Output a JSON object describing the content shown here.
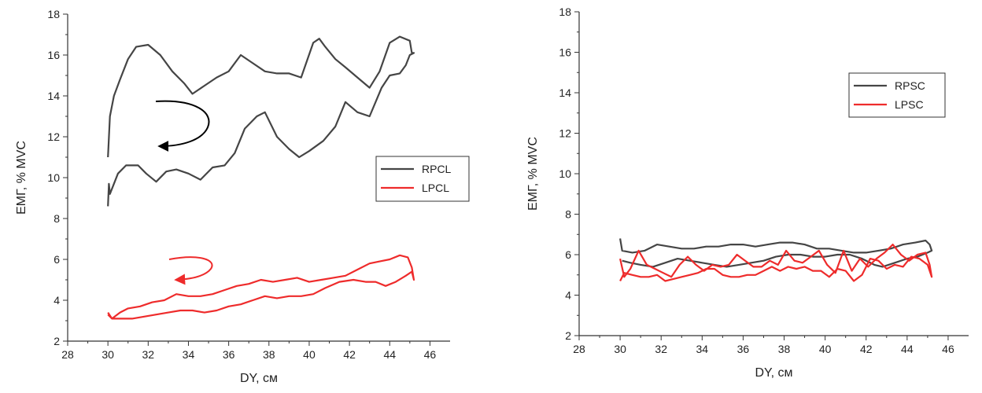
{
  "chart_data": [
    {
      "type": "line",
      "xlabel": "DY, см",
      "ylabel": "ЕМГ, % MVC",
      "xlim": [
        28,
        47
      ],
      "ylim": [
        2,
        18
      ],
      "xticks": [
        28,
        30,
        32,
        34,
        36,
        38,
        40,
        42,
        44,
        46
      ],
      "yticks": [
        2,
        4,
        6,
        8,
        10,
        12,
        14,
        16,
        18
      ],
      "legend_position": "center-right",
      "series": [
        {
          "name": "RPCL",
          "color": "#454545",
          "points": [
            [
              30.0,
              11.0
            ],
            [
              30.1,
              13.0
            ],
            [
              30.3,
              14.0
            ],
            [
              30.6,
              14.8
            ],
            [
              31.0,
              15.8
            ],
            [
              31.4,
              16.4
            ],
            [
              32.0,
              16.5
            ],
            [
              32.6,
              16.0
            ],
            [
              33.2,
              15.2
            ],
            [
              33.8,
              14.6
            ],
            [
              34.2,
              14.1
            ],
            [
              34.8,
              14.5
            ],
            [
              35.4,
              14.9
            ],
            [
              36.0,
              15.2
            ],
            [
              36.6,
              16.0
            ],
            [
              37.2,
              15.6
            ],
            [
              37.8,
              15.2
            ],
            [
              38.4,
              15.1
            ],
            [
              39.0,
              15.1
            ],
            [
              39.6,
              14.9
            ],
            [
              40.2,
              16.6
            ],
            [
              40.5,
              16.8
            ],
            [
              40.8,
              16.4
            ],
            [
              41.3,
              15.8
            ],
            [
              41.8,
              15.4
            ],
            [
              42.4,
              14.9
            ],
            [
              43.0,
              14.4
            ],
            [
              43.5,
              15.2
            ],
            [
              44.0,
              16.6
            ],
            [
              44.5,
              16.9
            ],
            [
              45.0,
              16.7
            ],
            [
              45.1,
              16.1
            ],
            [
              45.2,
              16.1
            ],
            [
              45.0,
              16.0
            ],
            [
              44.8,
              15.5
            ],
            [
              44.5,
              15.1
            ],
            [
              44.0,
              15.0
            ],
            [
              43.6,
              14.4
            ],
            [
              43.0,
              13.0
            ],
            [
              42.4,
              13.2
            ],
            [
              41.8,
              13.7
            ],
            [
              41.3,
              12.5
            ],
            [
              40.7,
              11.8
            ],
            [
              40.0,
              11.3
            ],
            [
              39.5,
              11.0
            ],
            [
              39.0,
              11.4
            ],
            [
              38.4,
              12.0
            ],
            [
              37.8,
              13.2
            ],
            [
              37.4,
              13.0
            ],
            [
              36.8,
              12.4
            ],
            [
              36.3,
              11.2
            ],
            [
              35.8,
              10.6
            ],
            [
              35.2,
              10.5
            ],
            [
              34.6,
              9.9
            ],
            [
              34.0,
              10.2
            ],
            [
              33.4,
              10.4
            ],
            [
              32.9,
              10.3
            ],
            [
              32.4,
              9.8
            ],
            [
              31.9,
              10.2
            ],
            [
              31.5,
              10.6
            ],
            [
              30.9,
              10.6
            ],
            [
              30.5,
              10.2
            ],
            [
              30.1,
              9.2
            ],
            [
              30.05,
              9.7
            ],
            [
              30.0,
              8.6
            ]
          ]
        },
        {
          "name": "LPCL",
          "color": "#ee2b2b",
          "points": [
            [
              30.0,
              3.3
            ],
            [
              30.2,
              3.1
            ],
            [
              30.6,
              3.4
            ],
            [
              31.0,
              3.6
            ],
            [
              31.6,
              3.7
            ],
            [
              32.2,
              3.9
            ],
            [
              32.8,
              4.0
            ],
            [
              33.4,
              4.3
            ],
            [
              34.0,
              4.2
            ],
            [
              34.6,
              4.2
            ],
            [
              35.2,
              4.3
            ],
            [
              35.8,
              4.5
            ],
            [
              36.4,
              4.7
            ],
            [
              37.0,
              4.8
            ],
            [
              37.6,
              5.0
            ],
            [
              38.2,
              4.9
            ],
            [
              38.8,
              5.0
            ],
            [
              39.4,
              5.1
            ],
            [
              40.0,
              4.9
            ],
            [
              40.6,
              5.0
            ],
            [
              41.2,
              5.1
            ],
            [
              41.8,
              5.2
            ],
            [
              42.4,
              5.5
            ],
            [
              43.0,
              5.8
            ],
            [
              43.5,
              5.9
            ],
            [
              44.0,
              6.0
            ],
            [
              44.5,
              6.2
            ],
            [
              44.9,
              6.1
            ],
            [
              45.1,
              5.6
            ],
            [
              45.2,
              5.0
            ],
            [
              45.1,
              5.4
            ],
            [
              44.8,
              5.2
            ],
            [
              44.3,
              4.9
            ],
            [
              43.8,
              4.7
            ],
            [
              43.3,
              4.9
            ],
            [
              42.8,
              4.9
            ],
            [
              42.2,
              5.0
            ],
            [
              41.5,
              4.9
            ],
            [
              40.8,
              4.6
            ],
            [
              40.2,
              4.3
            ],
            [
              39.6,
              4.2
            ],
            [
              39.0,
              4.2
            ],
            [
              38.4,
              4.1
            ],
            [
              37.8,
              4.2
            ],
            [
              37.2,
              4.0
            ],
            [
              36.6,
              3.8
            ],
            [
              36.0,
              3.7
            ],
            [
              35.4,
              3.5
            ],
            [
              34.8,
              3.4
            ],
            [
              34.2,
              3.5
            ],
            [
              33.6,
              3.5
            ],
            [
              33.0,
              3.4
            ],
            [
              32.4,
              3.3
            ],
            [
              31.8,
              3.2
            ],
            [
              31.2,
              3.1
            ],
            [
              30.6,
              3.1
            ],
            [
              30.2,
              3.1
            ],
            [
              30.0,
              3.4
            ]
          ]
        }
      ]
    },
    {
      "type": "line",
      "xlabel": "DY, см",
      "ylabel": "ЕМГ, % MVC",
      "xlim": [
        28,
        47
      ],
      "ylim": [
        2,
        18
      ],
      "xticks": [
        28,
        30,
        32,
        34,
        36,
        38,
        40,
        42,
        44,
        46
      ],
      "yticks": [
        2,
        4,
        6,
        8,
        10,
        12,
        14,
        16,
        18
      ],
      "legend_position": "top-right",
      "series": [
        {
          "name": "RPSC",
          "color": "#454545",
          "points": [
            [
              30.0,
              6.8
            ],
            [
              30.1,
              6.2
            ],
            [
              30.6,
              6.1
            ],
            [
              31.2,
              6.2
            ],
            [
              31.8,
              6.5
            ],
            [
              32.4,
              6.4
            ],
            [
              33.0,
              6.3
            ],
            [
              33.6,
              6.3
            ],
            [
              34.2,
              6.4
            ],
            [
              34.8,
              6.4
            ],
            [
              35.4,
              6.5
            ],
            [
              36.0,
              6.5
            ],
            [
              36.6,
              6.4
            ],
            [
              37.2,
              6.5
            ],
            [
              37.8,
              6.6
            ],
            [
              38.4,
              6.6
            ],
            [
              39.0,
              6.5
            ],
            [
              39.6,
              6.3
            ],
            [
              40.2,
              6.3
            ],
            [
              40.8,
              6.2
            ],
            [
              41.4,
              6.1
            ],
            [
              42.0,
              6.1
            ],
            [
              42.6,
              6.2
            ],
            [
              43.2,
              6.3
            ],
            [
              43.8,
              6.5
            ],
            [
              44.4,
              6.6
            ],
            [
              44.9,
              6.7
            ],
            [
              45.1,
              6.5
            ],
            [
              45.2,
              6.2
            ],
            [
              45.0,
              6.1
            ],
            [
              44.5,
              5.9
            ],
            [
              44.0,
              5.8
            ],
            [
              43.4,
              5.6
            ],
            [
              42.8,
              5.4
            ],
            [
              42.4,
              5.5
            ],
            [
              41.8,
              5.8
            ],
            [
              41.2,
              6.0
            ],
            [
              40.6,
              6.0
            ],
            [
              40.0,
              5.9
            ],
            [
              39.4,
              5.9
            ],
            [
              38.8,
              6.0
            ],
            [
              38.2,
              6.0
            ],
            [
              37.6,
              5.9
            ],
            [
              37.0,
              5.7
            ],
            [
              36.4,
              5.6
            ],
            [
              35.8,
              5.5
            ],
            [
              35.2,
              5.4
            ],
            [
              34.6,
              5.5
            ],
            [
              34.0,
              5.6
            ],
            [
              33.4,
              5.7
            ],
            [
              32.8,
              5.8
            ],
            [
              32.2,
              5.6
            ],
            [
              31.6,
              5.4
            ],
            [
              31.0,
              5.5
            ],
            [
              30.5,
              5.6
            ],
            [
              30.1,
              5.7
            ]
          ]
        },
        {
          "name": "LPSC",
          "color": "#ee2b2b",
          "points": [
            [
              30.0,
              5.8
            ],
            [
              30.2,
              4.9
            ],
            [
              30.5,
              5.3
            ],
            [
              30.9,
              6.2
            ],
            [
              31.3,
              5.5
            ],
            [
              31.7,
              5.3
            ],
            [
              32.1,
              5.1
            ],
            [
              32.5,
              4.9
            ],
            [
              32.9,
              5.5
            ],
            [
              33.3,
              5.9
            ],
            [
              33.7,
              5.5
            ],
            [
              34.1,
              5.2
            ],
            [
              34.5,
              5.5
            ],
            [
              34.9,
              5.4
            ],
            [
              35.3,
              5.5
            ],
            [
              35.7,
              6.0
            ],
            [
              36.1,
              5.7
            ],
            [
              36.5,
              5.4
            ],
            [
              36.9,
              5.4
            ],
            [
              37.3,
              5.7
            ],
            [
              37.7,
              5.5
            ],
            [
              38.1,
              6.2
            ],
            [
              38.5,
              5.7
            ],
            [
              38.9,
              5.6
            ],
            [
              39.3,
              5.9
            ],
            [
              39.7,
              6.2
            ],
            [
              40.1,
              5.5
            ],
            [
              40.5,
              5.1
            ],
            [
              40.9,
              6.2
            ],
            [
              41.3,
              5.2
            ],
            [
              41.7,
              5.8
            ],
            [
              42.1,
              5.4
            ],
            [
              42.5,
              5.8
            ],
            [
              42.9,
              6.1
            ],
            [
              43.3,
              6.5
            ],
            [
              43.7,
              6.0
            ],
            [
              44.1,
              5.7
            ],
            [
              44.5,
              6.0
            ],
            [
              44.9,
              6.1
            ],
            [
              45.1,
              5.5
            ],
            [
              45.2,
              4.9
            ],
            [
              45.0,
              5.5
            ],
            [
              44.6,
              5.8
            ],
            [
              44.2,
              5.9
            ],
            [
              43.8,
              5.4
            ],
            [
              43.4,
              5.5
            ],
            [
              43.0,
              5.3
            ],
            [
              42.6,
              5.7
            ],
            [
              42.2,
              5.8
            ],
            [
              41.8,
              5.0
            ],
            [
              41.4,
              4.7
            ],
            [
              41.0,
              5.2
            ],
            [
              40.6,
              5.3
            ],
            [
              40.2,
              4.9
            ],
            [
              39.8,
              5.2
            ],
            [
              39.4,
              5.2
            ],
            [
              39.0,
              5.4
            ],
            [
              38.6,
              5.3
            ],
            [
              38.2,
              5.4
            ],
            [
              37.8,
              5.2
            ],
            [
              37.4,
              5.4
            ],
            [
              37.0,
              5.2
            ],
            [
              36.6,
              5.0
            ],
            [
              36.2,
              5.0
            ],
            [
              35.8,
              4.9
            ],
            [
              35.4,
              4.9
            ],
            [
              35.0,
              5.0
            ],
            [
              34.6,
              5.3
            ],
            [
              34.2,
              5.3
            ],
            [
              33.8,
              5.1
            ],
            [
              33.4,
              5.0
            ],
            [
              33.0,
              4.9
            ],
            [
              32.6,
              4.8
            ],
            [
              32.2,
              4.7
            ],
            [
              31.8,
              5.0
            ],
            [
              31.4,
              4.9
            ],
            [
              31.0,
              4.9
            ],
            [
              30.6,
              5.0
            ],
            [
              30.2,
              5.1
            ],
            [
              30.0,
              4.7
            ]
          ]
        }
      ]
    }
  ]
}
